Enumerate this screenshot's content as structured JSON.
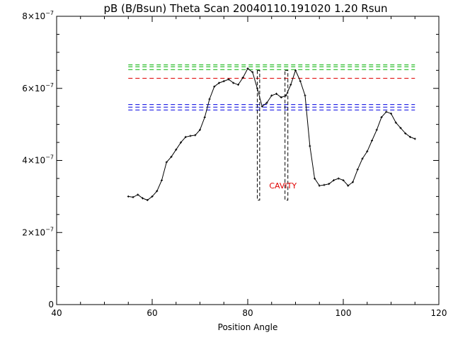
{
  "chart_data": {
    "type": "line",
    "title": "pB (B/Bsun) Theta Scan 20040110.191020 1.20 Rsun",
    "xlabel": "Position Angle",
    "ylabel": "",
    "xlim": [
      40,
      120
    ],
    "ylim": [
      0,
      8e-07
    ],
    "x_ticks": [
      40,
      60,
      80,
      100,
      120
    ],
    "x_tick_labels": [
      "40",
      "60",
      "80",
      "100",
      "120"
    ],
    "y_ticks": [
      0,
      2e-07,
      4e-07,
      6e-07,
      8e-07
    ],
    "y_tick_labels": [
      {
        "mant": "0",
        "exp": ""
      },
      {
        "mant": "2×10",
        "exp": "−7"
      },
      {
        "mant": "4×10",
        "exp": "−7"
      },
      {
        "mant": "6×10",
        "exp": "−7"
      },
      {
        "mant": "8×10",
        "exp": "−7"
      }
    ],
    "grid": false,
    "series": [
      {
        "style": "line-with-points",
        "color": "#000000",
        "x": [
          55,
          56,
          57,
          58,
          59,
          60,
          61,
          62,
          63,
          64,
          65,
          66,
          67,
          68,
          69,
          70,
          71,
          72,
          73,
          74,
          75,
          76,
          77,
          78,
          79,
          80,
          81,
          82,
          83,
          84,
          85,
          86,
          87,
          88,
          89,
          90,
          91,
          92,
          93,
          94,
          95,
          96,
          97,
          98,
          99,
          100,
          101,
          102,
          103,
          104,
          105,
          106,
          107,
          108,
          109,
          110,
          111,
          112,
          113,
          114,
          115
        ],
        "y": [
          3e-07,
          2.98e-07,
          3.05e-07,
          2.95e-07,
          2.9e-07,
          3e-07,
          3.15e-07,
          3.45e-07,
          3.95e-07,
          4.1e-07,
          4.3e-07,
          4.5e-07,
          4.65e-07,
          4.68e-07,
          4.7e-07,
          4.85e-07,
          5.2e-07,
          5.7e-07,
          6.05e-07,
          6.15e-07,
          6.2e-07,
          6.25e-07,
          6.15e-07,
          6.1e-07,
          6.3e-07,
          6.55e-07,
          6.45e-07,
          6e-07,
          5.5e-07,
          5.6e-07,
          5.8e-07,
          5.85e-07,
          5.75e-07,
          5.8e-07,
          6.1e-07,
          6.5e-07,
          6.2e-07,
          5.8e-07,
          4.4e-07,
          3.5e-07,
          3.3e-07,
          3.32e-07,
          3.35e-07,
          3.45e-07,
          3.5e-07,
          3.45e-07,
          3.3e-07,
          3.4e-07,
          3.75e-07,
          4.05e-07,
          4.25e-07,
          4.55e-07,
          4.85e-07,
          5.2e-07,
          5.35e-07,
          5.3e-07,
          5.05e-07,
          4.9e-07,
          4.75e-07,
          4.65e-07,
          4.6e-07
        ]
      }
    ],
    "reference_lines": [
      {
        "y": 6.65e-07,
        "x_range": [
          55,
          115
        ],
        "color": "#00b000",
        "dash": true
      },
      {
        "y": 6.6e-07,
        "x_range": [
          55,
          115
        ],
        "color": "#00b000",
        "dash": true
      },
      {
        "y": 6.52e-07,
        "x_range": [
          55,
          115
        ],
        "color": "#00b000",
        "dash": true
      },
      {
        "y": 6.28e-07,
        "x_range": [
          55,
          115
        ],
        "color": "#e00000",
        "dash": true
      },
      {
        "y": 5.55e-07,
        "x_range": [
          55,
          115
        ],
        "color": "#0000e0",
        "dash": true
      },
      {
        "y": 5.48e-07,
        "x_range": [
          55,
          115
        ],
        "color": "#0000e0",
        "dash": true
      },
      {
        "y": 5.4e-07,
        "x_range": [
          55,
          115
        ],
        "color": "#0000e0",
        "dash": true
      }
    ],
    "boundary_boxes": [
      {
        "x_range": [
          82,
          82.5
        ],
        "y_range": [
          2.9e-07,
          6.5e-07
        ],
        "color": "#000000",
        "dash": true
      },
      {
        "x_range": [
          87.8,
          88.4
        ],
        "y_range": [
          2.9e-07,
          6.5e-07
        ],
        "color": "#000000",
        "dash": true
      }
    ],
    "annotations": [
      {
        "text": "CAVITY",
        "x": 84.5,
        "y": 3.22e-07,
        "color": "#e00000"
      }
    ]
  }
}
